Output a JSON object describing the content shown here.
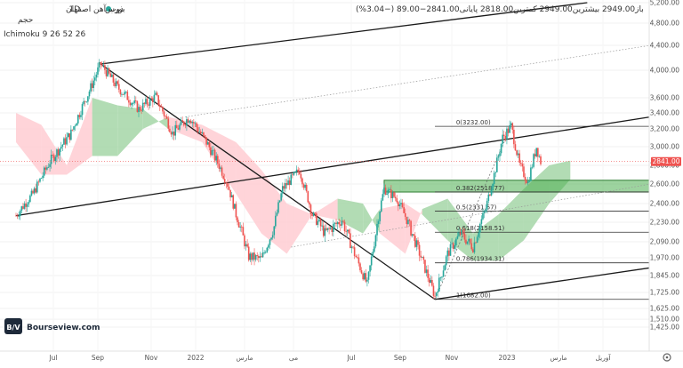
{
  "header": {
    "symbol_dot_color": "#26a69a",
    "symbol": "ذوب آهن اصفهان",
    "interval": "1D",
    "exchange": "بورس",
    "quote": "باز2949.00 بیشترین2949.00 کمترین2818.00 پایانی2841.00−89.00 (−3.04%)",
    "volume_label": "حجم",
    "indicator": "Ichimoku 9 26 52 26"
  },
  "logo": {
    "text": "Bourseview.com",
    "mark": "B/V"
  },
  "colors": {
    "up": "#26a69a",
    "down": "#ef5350",
    "cloud_bull": "#a5d6a7",
    "cloud_bear": "#ffcdd2",
    "zone": "#4caf50",
    "last_price_bg": "#ef5350",
    "line": "#1a1a1a"
  },
  "chart_data": {
    "type": "candlestick",
    "title": "ذوب آهن اصفهان",
    "x_ticks": [
      "Jul",
      "Sep",
      "Nov",
      "2022",
      "مارس",
      "می",
      "Jul",
      "Sep",
      "Nov",
      "2023",
      "مارس",
      "آوریل"
    ],
    "y_ticks": [
      1425,
      1510,
      1625,
      1725,
      1845,
      1970,
      2090,
      2230,
      2400,
      2600,
      2800,
      3000,
      3200,
      3400,
      3600,
      4000,
      4400,
      4800,
      5200
    ],
    "last_price": "2841.00",
    "fibonacci": [
      {
        "label": "0(3232.00)",
        "value": 3232
      },
      {
        "label": "0.382(2518.77)",
        "value": 2518.77
      },
      {
        "label": "0.5(2331.57)",
        "value": 2331.57
      },
      {
        "label": "0.618(2158.51)",
        "value": 2158.51
      },
      {
        "label": "0.786(1934.31)",
        "value": 1934.31
      },
      {
        "label": "1(1682.00)",
        "value": 1682
      }
    ],
    "zone": {
      "low": 2518,
      "high": 2640
    },
    "price_path": [
      {
        "i": 0,
        "v": 2290
      },
      {
        "i": 4,
        "v": 2500
      },
      {
        "i": 8,
        "v": 2840
      },
      {
        "i": 13,
        "v": 3150
      },
      {
        "i": 17,
        "v": 3650
      },
      {
        "i": 20,
        "v": 4100
      },
      {
        "i": 24,
        "v": 3750
      },
      {
        "i": 29,
        "v": 3450
      },
      {
        "i": 33,
        "v": 3620
      },
      {
        "i": 37,
        "v": 3150
      },
      {
        "i": 41,
        "v": 3350
      },
      {
        "i": 45,
        "v": 3050
      },
      {
        "i": 48,
        "v": 2800
      },
      {
        "i": 50,
        "v": 2600
      },
      {
        "i": 52,
        "v": 2300
      },
      {
        "i": 55,
        "v": 1980
      },
      {
        "i": 58,
        "v": 1960
      },
      {
        "i": 61,
        "v": 2200
      },
      {
        "i": 63,
        "v": 2550
      },
      {
        "i": 67,
        "v": 2750
      },
      {
        "i": 70,
        "v": 2300
      },
      {
        "i": 73,
        "v": 2150
      },
      {
        "i": 77,
        "v": 2250
      },
      {
        "i": 80,
        "v": 2000
      },
      {
        "i": 83,
        "v": 1780
      },
      {
        "i": 85,
        "v": 2150
      },
      {
        "i": 87,
        "v": 2550
      },
      {
        "i": 90,
        "v": 2450
      },
      {
        "i": 93,
        "v": 2200
      },
      {
        "i": 96,
        "v": 1950
      },
      {
        "i": 99,
        "v": 1700
      },
      {
        "i": 102,
        "v": 2000
      },
      {
        "i": 105,
        "v": 2150
      },
      {
        "i": 108,
        "v": 2050
      },
      {
        "i": 111,
        "v": 2350
      },
      {
        "i": 113,
        "v": 2700
      },
      {
        "i": 115,
        "v": 3100
      },
      {
        "i": 117,
        "v": 3232
      },
      {
        "i": 119,
        "v": 2800
      },
      {
        "i": 121,
        "v": 2620
      },
      {
        "i": 123,
        "v": 3000
      },
      {
        "i": 124,
        "v": 2841
      }
    ],
    "trendlines": [
      {
        "name": "upper-channel",
        "from": {
          "i": 20,
          "v": 4100
        },
        "to": {
          "i": 135,
          "v": 5200
        }
      },
      {
        "name": "dotted-parallel",
        "from": {
          "i": 40,
          "v": 3350
        },
        "to": {
          "i": 150,
          "v": 4400
        }
      },
      {
        "name": "lower-rising-line",
        "from": {
          "i": 0,
          "v": 2290
        },
        "to": {
          "i": 150,
          "v": 3350
        }
      },
      {
        "name": "falling-diagonal",
        "from": {
          "i": 20,
          "v": 4100
        },
        "to": {
          "i": 99,
          "v": 1682
        }
      },
      {
        "name": "lower-channel",
        "from": {
          "i": 99,
          "v": 1682
        },
        "to": {
          "i": 150,
          "v": 1900
        }
      },
      {
        "name": "dotted-mid",
        "from": {
          "i": 65,
          "v": 2050
        },
        "to": {
          "i": 150,
          "v": 2600
        }
      }
    ],
    "cloud": [
      {
        "i": 0,
        "a": 3400,
        "b": 3050,
        "kind": "bear"
      },
      {
        "i": 6,
        "a": 3250,
        "b": 2700,
        "kind": "bear"
      },
      {
        "i": 12,
        "a": 2800,
        "b": 2700,
        "kind": "bear"
      },
      {
        "i": 18,
        "a": 3600,
        "b": 2900,
        "kind": "bull"
      },
      {
        "i": 24,
        "a": 3500,
        "b": 2900,
        "kind": "bull"
      },
      {
        "i": 30,
        "a": 3450,
        "b": 3200,
        "kind": "bull"
      },
      {
        "i": 36,
        "a": 3200,
        "b": 3350,
        "kind": "bear"
      },
      {
        "i": 44,
        "a": 3050,
        "b": 3250,
        "kind": "bear"
      },
      {
        "i": 52,
        "a": 2500,
        "b": 3050,
        "kind": "bear"
      },
      {
        "i": 58,
        "a": 2150,
        "b": 2750,
        "kind": "bear"
      },
      {
        "i": 64,
        "a": 2000,
        "b": 2400,
        "kind": "bear"
      },
      {
        "i": 70,
        "a": 2300,
        "b": 2300,
        "kind": "bear"
      },
      {
        "i": 76,
        "a": 2450,
        "b": 2250,
        "kind": "bull"
      },
      {
        "i": 82,
        "a": 2400,
        "b": 2150,
        "kind": "bull"
      },
      {
        "i": 86,
        "a": 2150,
        "b": 2350,
        "kind": "bear"
      },
      {
        "i": 92,
        "a": 2000,
        "b": 2400,
        "kind": "bear"
      },
      {
        "i": 96,
        "a": 2350,
        "b": 2300,
        "kind": "bull"
      },
      {
        "i": 102,
        "a": 2450,
        "b": 2100,
        "kind": "bull"
      },
      {
        "i": 108,
        "a": 2150,
        "b": 1950,
        "kind": "bull"
      },
      {
        "i": 114,
        "a": 2300,
        "b": 1950,
        "kind": "bull"
      },
      {
        "i": 120,
        "a": 2550,
        "b": 2100,
        "kind": "bull"
      },
      {
        "i": 126,
        "a": 2800,
        "b": 2400,
        "kind": "bull"
      },
      {
        "i": 131,
        "a": 2850,
        "b": 2650,
        "kind": "bull"
      }
    ]
  }
}
